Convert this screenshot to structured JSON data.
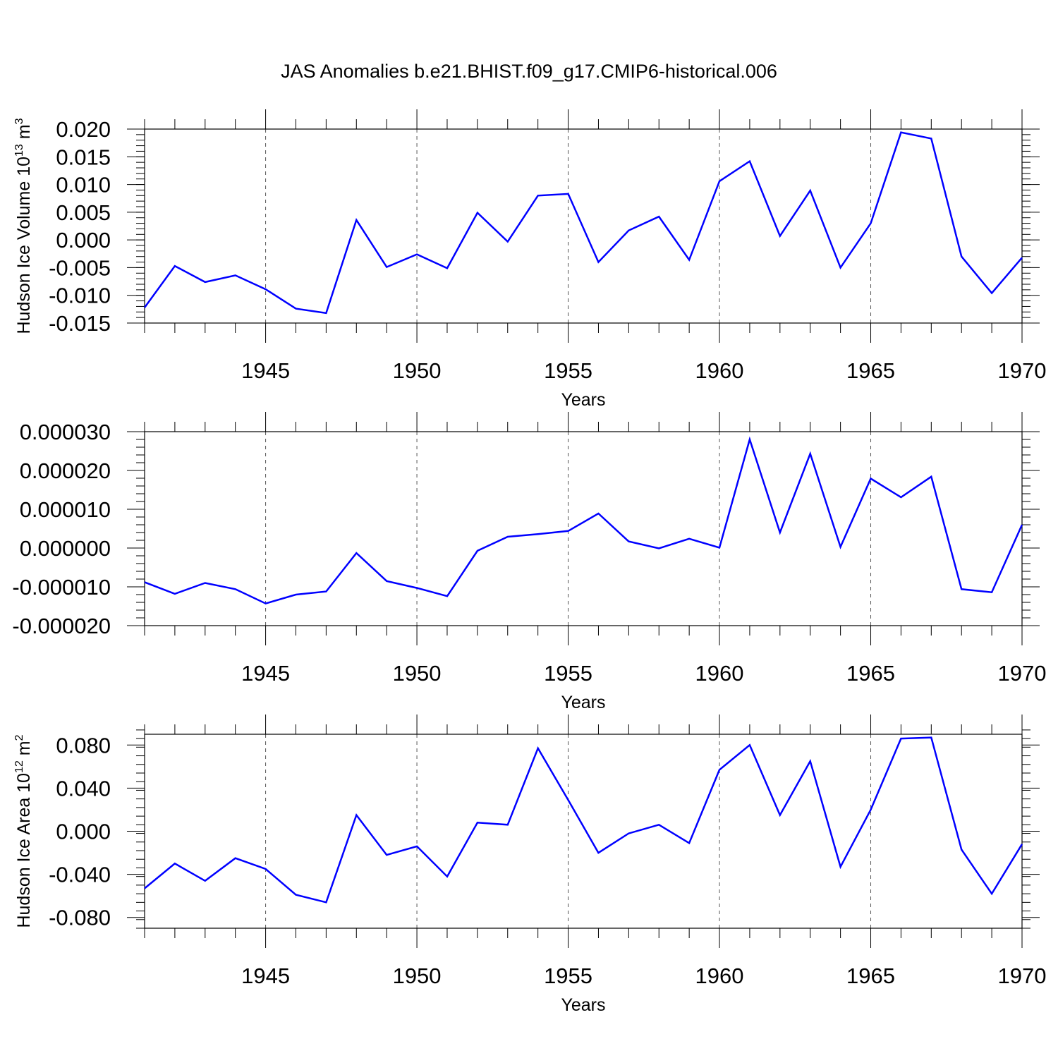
{
  "title": "JAS Anomalies b.e21.BHIST.f09_g17.CMIP6-historical.006",
  "colors": {
    "line": "#0000ff",
    "axis": "#000000",
    "grid": "#555555"
  },
  "chart_data": [
    {
      "type": "line",
      "title": "",
      "xlabel": "Years",
      "ylabel": "Hudson Ice Volume 10",
      "ylabel_exp": "13",
      "ylabel_unit": " m",
      "ylabel_unit_exp": "3",
      "xlim": [
        1941,
        1970
      ],
      "ylim": [
        -0.015,
        0.02
      ],
      "x_ticks": [
        1945,
        1950,
        1955,
        1960,
        1965,
        1970
      ],
      "x_tick_labels": [
        "1945",
        "1950",
        "1955",
        "1960",
        "1965",
        "1970"
      ],
      "y_ticks": [
        -0.015,
        -0.01,
        -0.005,
        0.0,
        0.005,
        0.01,
        0.015,
        0.02
      ],
      "y_tick_labels": [
        "-0.015",
        "-0.010",
        "-0.005",
        "0.000",
        "0.005",
        "0.010",
        "0.015",
        "0.020"
      ],
      "y_minor_step": 0.001,
      "grid": "vertical dashed at major x ticks",
      "x": [
        1941,
        1942,
        1943,
        1944,
        1945,
        1946,
        1947,
        1948,
        1949,
        1950,
        1951,
        1952,
        1953,
        1954,
        1955,
        1956,
        1957,
        1958,
        1959,
        1960,
        1961,
        1962,
        1963,
        1964,
        1965,
        1966,
        1967,
        1968,
        1969,
        1970
      ],
      "series": [
        {
          "values": [
            -0.0122,
            -0.0047,
            -0.0076,
            -0.0064,
            -0.0089,
            -0.0124,
            -0.0132,
            0.0036,
            -0.0049,
            -0.0026,
            -0.0051,
            0.0049,
            -0.0003,
            0.008,
            0.0083,
            -0.004,
            0.0017,
            0.0042,
            -0.0036,
            0.0106,
            0.0142,
            0.0007,
            0.0089,
            -0.005,
            0.003,
            0.0194,
            0.0183,
            -0.003,
            -0.0096,
            -0.0032
          ]
        }
      ]
    },
    {
      "type": "line",
      "title": "",
      "xlabel": "Years",
      "ylabel": "",
      "xlim": [
        1941,
        1970
      ],
      "ylim": [
        -2e-05,
        3e-05
      ],
      "x_ticks": [
        1945,
        1950,
        1955,
        1960,
        1965,
        1970
      ],
      "x_tick_labels": [
        "1945",
        "1950",
        "1955",
        "1960",
        "1965",
        "1970"
      ],
      "y_ticks": [
        -2e-05,
        -1e-05,
        0.0,
        1e-05,
        2e-05,
        3e-05
      ],
      "y_tick_labels": [
        "-0.000020",
        "-0.000010",
        "0.000000",
        "0.000010",
        "0.000020",
        "0.000030"
      ],
      "y_minor_step": 2e-06,
      "grid": "vertical dashed at major x ticks",
      "x": [
        1941,
        1942,
        1943,
        1944,
        1945,
        1946,
        1947,
        1948,
        1949,
        1950,
        1951,
        1952,
        1953,
        1954,
        1955,
        1956,
        1957,
        1958,
        1959,
        1960,
        1961,
        1962,
        1963,
        1964,
        1965,
        1966,
        1967,
        1968,
        1969,
        1970
      ],
      "series": [
        {
          "values": [
            -8.8e-06,
            -1.18e-05,
            -9e-06,
            -1.06e-05,
            -1.43e-05,
            -1.2e-05,
            -1.12e-05,
            -1.3e-06,
            -8.5e-06,
            -1.03e-05,
            -1.24e-05,
            -7e-07,
            2.9e-06,
            3.6e-06,
            4.4e-06,
            8.9e-06,
            1.7e-06,
            -1e-07,
            2.4e-06,
            1e-07,
            2.8e-05,
            4e-06,
            2.43e-05,
            3e-07,
            1.79e-05,
            1.31e-05,
            1.84e-05,
            -1.06e-05,
            -1.14e-05,
            6e-06
          ]
        }
      ]
    },
    {
      "type": "line",
      "title": "",
      "xlabel": "Years",
      "ylabel": "Hudson Ice Area 10",
      "ylabel_exp": "12",
      "ylabel_unit": " m",
      "ylabel_unit_exp": "2",
      "xlim": [
        1941,
        1970
      ],
      "ylim": [
        -0.09,
        0.09
      ],
      "x_ticks": [
        1945,
        1950,
        1955,
        1960,
        1965,
        1970
      ],
      "x_tick_labels": [
        "1945",
        "1950",
        "1955",
        "1960",
        "1965",
        "1970"
      ],
      "y_ticks": [
        -0.08,
        -0.04,
        0.0,
        0.04,
        0.08
      ],
      "y_tick_labels": [
        "-0.080",
        "-0.040",
        "0.000",
        "0.040",
        "0.080"
      ],
      "y_minor_step": 0.008,
      "grid": "vertical dashed at major x ticks",
      "x": [
        1941,
        1942,
        1943,
        1944,
        1945,
        1946,
        1947,
        1948,
        1949,
        1950,
        1951,
        1952,
        1953,
        1954,
        1955,
        1956,
        1957,
        1958,
        1959,
        1960,
        1961,
        1962,
        1963,
        1964,
        1965,
        1966,
        1967,
        1968,
        1969,
        1970
      ],
      "series": [
        {
          "values": [
            -0.053,
            -0.03,
            -0.046,
            -0.025,
            -0.035,
            -0.059,
            -0.066,
            0.015,
            -0.022,
            -0.014,
            -0.042,
            0.008,
            0.006,
            0.077,
            0.029,
            -0.02,
            -0.002,
            0.006,
            -0.011,
            0.057,
            0.08,
            0.015,
            0.065,
            -0.033,
            0.02,
            0.086,
            0.087,
            -0.017,
            -0.058,
            -0.012
          ]
        }
      ]
    }
  ]
}
